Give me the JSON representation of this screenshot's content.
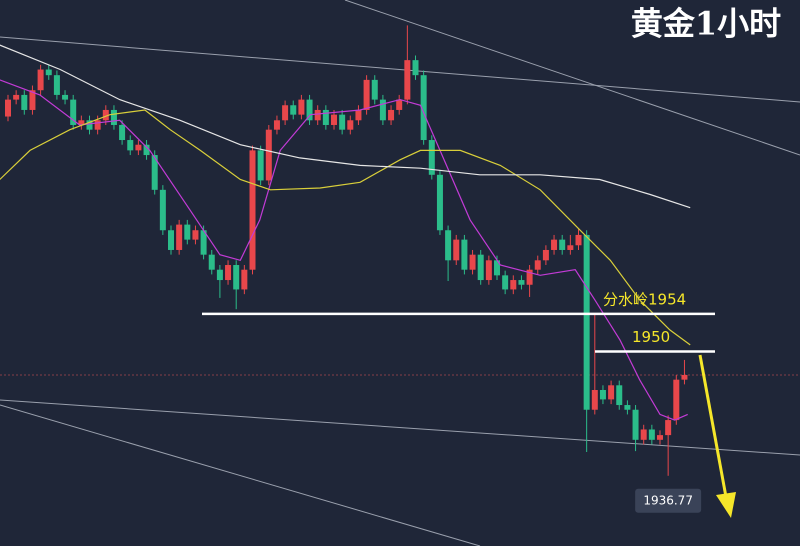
{
  "chart_data": {
    "type": "candlestick",
    "title": "黄金1小时",
    "ylim": [
      1929.3,
      1987.4
    ],
    "up_color": "#e8474b",
    "down_color": "#2bbd8a",
    "open": [
      1975.0,
      1976.8,
      1977.3,
      1975.7,
      1977.8,
      1980.0,
      1979.4,
      1977.3,
      1976.8,
      1974.1,
      1974.6,
      1973.6,
      1974.6,
      1975.7,
      1974.1,
      1972.5,
      1971.4,
      1972.0,
      1970.9,
      1967.2,
      1962.9,
      1960.8,
      1963.5,
      1961.9,
      1962.9,
      1960.3,
      1958.7,
      1957.6,
      1959.2,
      1956.6,
      1958.7,
      1971.4,
      1968.2,
      1973.6,
      1974.6,
      1976.2,
      1975.2,
      1976.8,
      1974.6,
      1975.7,
      1974.1,
      1975.2,
      1973.6,
      1974.6,
      1975.7,
      1978.9,
      1976.8,
      1974.6,
      1975.7,
      1976.8,
      1981.0,
      1979.4,
      1972.5,
      1968.8,
      1962.9,
      1959.7,
      1961.9,
      1958.7,
      1960.3,
      1957.6,
      1959.7,
      1958.1,
      1956.6,
      1957.6,
      1957.1,
      1958.7,
      1959.7,
      1960.8,
      1961.9,
      1960.8,
      1961.3,
      1962.4,
      1943.8,
      1945.9,
      1944.9,
      1946.4,
      1944.3,
      1943.8,
      1940.6,
      1941.7,
      1940.6,
      1941.1,
      1942.7,
      1947.0
    ],
    "high": [
      1977.3,
      1977.8,
      1977.8,
      1978.3,
      1980.5,
      1980.5,
      1979.9,
      1977.8,
      1977.3,
      1975.1,
      1975.1,
      1975.1,
      1976.2,
      1976.2,
      1974.6,
      1973.0,
      1972.5,
      1972.5,
      1971.4,
      1967.7,
      1963.4,
      1964.0,
      1964.0,
      1963.4,
      1963.4,
      1960.8,
      1959.2,
      1959.7,
      1959.7,
      1959.2,
      1971.9,
      1971.9,
      1974.1,
      1975.1,
      1976.7,
      1976.7,
      1977.3,
      1977.3,
      1976.2,
      1976.2,
      1975.7,
      1975.7,
      1975.1,
      1976.2,
      1979.4,
      1979.4,
      1977.3,
      1976.2,
      1977.3,
      1984.7,
      1981.5,
      1979.9,
      1973.0,
      1969.3,
      1963.4,
      1962.4,
      1962.4,
      1960.8,
      1960.8,
      1960.2,
      1960.2,
      1958.6,
      1958.1,
      1958.1,
      1959.2,
      1960.2,
      1961.3,
      1962.4,
      1962.4,
      1962.4,
      1963.0,
      1962.9,
      1953.9,
      1946.4,
      1946.9,
      1946.9,
      1944.8,
      1944.3,
      1942.2,
      1942.2,
      1941.6,
      1943.2,
      1947.5,
      1949.1
    ],
    "low": [
      1974.5,
      1976.3,
      1975.2,
      1975.2,
      1977.3,
      1978.9,
      1976.8,
      1976.3,
      1973.6,
      1973.6,
      1973.1,
      1973.1,
      1974.1,
      1973.6,
      1972.0,
      1970.9,
      1970.9,
      1970.4,
      1966.7,
      1962.4,
      1960.3,
      1960.3,
      1961.4,
      1961.4,
      1959.8,
      1958.2,
      1955.7,
      1957.1,
      1954.5,
      1956.1,
      1958.2,
      1967.7,
      1967.7,
      1973.1,
      1974.1,
      1974.7,
      1974.7,
      1974.1,
      1974.1,
      1973.6,
      1973.6,
      1973.1,
      1973.1,
      1974.1,
      1975.2,
      1976.3,
      1974.1,
      1974.1,
      1975.2,
      1976.3,
      1978.9,
      1972.0,
      1968.3,
      1962.4,
      1957.5,
      1959.2,
      1958.2,
      1958.2,
      1957.1,
      1957.1,
      1957.6,
      1956.1,
      1956.1,
      1956.6,
      1955.8,
      1958.2,
      1959.2,
      1960.3,
      1960.3,
      1960.3,
      1960.8,
      1939.3,
      1943.3,
      1944.4,
      1944.4,
      1943.8,
      1943.3,
      1939.4,
      1940.1,
      1940.1,
      1940.1,
      1936.77,
      1942.2,
      1946.5
    ],
    "close": [
      1976.8,
      1977.3,
      1975.7,
      1977.8,
      1980.0,
      1979.4,
      1977.3,
      1976.8,
      1974.1,
      1974.6,
      1973.6,
      1974.6,
      1975.7,
      1974.1,
      1972.5,
      1971.4,
      1972.0,
      1970.9,
      1967.2,
      1962.9,
      1960.8,
      1963.5,
      1961.9,
      1962.9,
      1960.3,
      1958.7,
      1957.6,
      1959.2,
      1956.6,
      1958.7,
      1971.4,
      1968.2,
      1973.6,
      1974.6,
      1976.2,
      1975.2,
      1976.8,
      1974.6,
      1975.7,
      1974.1,
      1975.2,
      1973.6,
      1974.6,
      1975.7,
      1978.9,
      1976.8,
      1974.6,
      1975.7,
      1976.8,
      1981.0,
      1979.4,
      1972.5,
      1968.8,
      1962.9,
      1959.7,
      1961.9,
      1958.7,
      1960.3,
      1957.6,
      1959.7,
      1958.1,
      1956.6,
      1957.6,
      1957.1,
      1958.7,
      1959.7,
      1960.8,
      1961.9,
      1960.8,
      1961.3,
      1962.4,
      1943.8,
      1945.9,
      1944.9,
      1946.4,
      1944.3,
      1943.8,
      1940.6,
      1941.7,
      1940.6,
      1941.1,
      1942.7,
      1947.0,
      1947.5
    ],
    "overlays": [
      {
        "color": "#c23bd6",
        "x": [
          0,
          4.9,
          9.8,
          14.7,
          18.4,
          23.3,
          27.0,
          29.5,
          31.9,
          34.4,
          38.1,
          44.2,
          49.1,
          51.6,
          54.0,
          57.7,
          61.4,
          66.3,
          70.6,
          73.0,
          76.1,
          78.5,
          81.0,
          82.8,
          84.4
        ],
        "values": [
          1978.9,
          1977.3,
          1974.1,
          1974.6,
          1971.4,
          1965.1,
          1960.3,
          1959.7,
          1964.0,
          1971.4,
          1975.2,
          1975.7,
          1976.8,
          1976.2,
          1971.4,
          1964.0,
          1959.2,
          1958.1,
          1958.7,
          1955.5,
          1951.2,
          1947.0,
          1943.3,
          1942.7,
          1943.3
        ]
      },
      {
        "color": "#d9cf3a",
        "x": [
          0,
          3.7,
          8.6,
          13.5,
          17.8,
          20.9,
          24.6,
          29.5,
          33.2,
          39.3,
          44.2,
          49.1,
          51.6,
          56.5,
          61.4,
          66.3,
          71.2,
          74.9,
          78.5,
          82.2,
          84.7
        ],
        "values": [
          1968.3,
          1971.4,
          1973.6,
          1975.2,
          1975.7,
          1973.6,
          1971.4,
          1968.3,
          1967.2,
          1967.4,
          1968.0,
          1970.4,
          1971.4,
          1971.4,
          1969.8,
          1967.2,
          1962.9,
          1959.7,
          1955.5,
          1952.3,
          1950.7
        ]
      },
      {
        "color": "#e6e6e6",
        "x": [
          0,
          7.4,
          14.7,
          22.1,
          29.5,
          36.8,
          44.2,
          51.6,
          58.9,
          66.3,
          73.6,
          79.8,
          84.7
        ],
        "values": [
          1982.6,
          1980.0,
          1976.8,
          1974.6,
          1972.0,
          1970.6,
          1969.8,
          1969.5,
          1968.8,
          1968.8,
          1968.3,
          1966.7,
          1965.3
        ]
      }
    ],
    "levels": [
      {
        "label": "分水岭1954",
        "value": 1954
      },
      {
        "value": 1950
      }
    ]
  }
}
